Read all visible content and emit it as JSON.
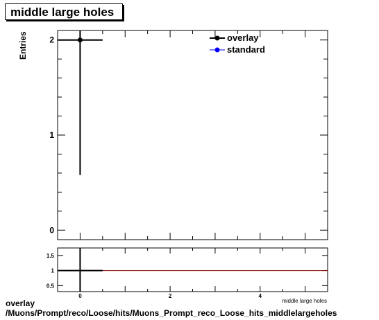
{
  "title": "middle large holes",
  "footer": {
    "line1": "overlay",
    "line2": "/Muons/Prompt/reco/Loose/hits/Muons_Prompt_reco_Loose_hits_middlelargeholes"
  },
  "colors": {
    "overlay": "#000000",
    "standard": "#0000ff",
    "ratio_line": "#8b0000"
  },
  "chart_data": [
    {
      "type": "scatter",
      "title": "middle large holes",
      "xlabel": "",
      "ylabel": "Entries",
      "xlim": [
        -0.5,
        5.5
      ],
      "ylim": [
        -0.1,
        2.1
      ],
      "x_ticks": [
        0,
        2,
        4
      ],
      "y_ticks": [
        0,
        1,
        2
      ],
      "legend": "top-right",
      "series": [
        {
          "name": "overlay",
          "color": "#000000",
          "points": [
            {
              "x": 0,
              "y": 2,
              "xerr": 0.5,
              "yerr_low": 1.42,
              "yerr_high": 0.1
            }
          ]
        },
        {
          "name": "standard",
          "color": "#0000ff",
          "points": []
        }
      ]
    },
    {
      "type": "line",
      "title": "",
      "xlabel": "middle large holes",
      "ylabel": "",
      "xlim": [
        -0.5,
        5.5
      ],
      "ylim": [
        0.3,
        1.75
      ],
      "y_ticks": [
        0.5,
        1,
        1.5
      ],
      "y_tick_labels": [
        "0.5",
        "1",
        "1.5"
      ],
      "reference_y": 1,
      "points": [
        {
          "x": 0,
          "y": 1,
          "xerr": 0.5,
          "yerr_low": 1,
          "yerr_high": 1
        }
      ]
    }
  ]
}
